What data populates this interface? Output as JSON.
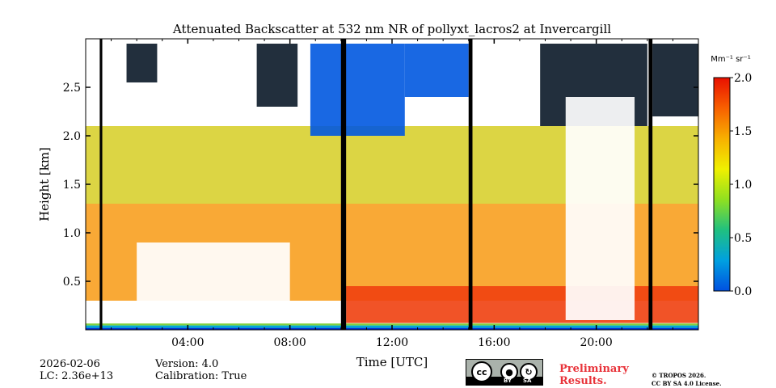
{
  "chart_data": {
    "type": "heatmap",
    "title": "Attenuated Backscatter at 532 nm NR of pollyxt_lacros2 at Invercargill",
    "xlabel": "Time [UTC]",
    "ylabel": "Height [km]",
    "xlim": [
      0,
      24
    ],
    "ylim": [
      0,
      3.0
    ],
    "x_ticks": [
      {
        "value": 4,
        "label": "04:00"
      },
      {
        "value": 8,
        "label": "08:00"
      },
      {
        "value": 12,
        "label": "12:00"
      },
      {
        "value": 16,
        "label": "16:00"
      },
      {
        "value": 20,
        "label": "20:00"
      }
    ],
    "x_minor_tick_step": 1,
    "y_ticks": [
      {
        "value": 0.5,
        "label": "0.5"
      },
      {
        "value": 1.0,
        "label": "1.0"
      },
      {
        "value": 1.5,
        "label": "1.5"
      },
      {
        "value": 2.0,
        "label": "2.0"
      },
      {
        "value": 2.5,
        "label": "2.5"
      }
    ],
    "colorbar": {
      "unit_label": "Mm⁻¹ sr⁻¹",
      "range": [
        0.0,
        2.0
      ],
      "ticks": [
        {
          "value": 0.0,
          "label": "0.0"
        },
        {
          "value": 0.5,
          "label": "0.5"
        },
        {
          "value": 1.0,
          "label": "1.0"
        },
        {
          "value": 1.5,
          "label": "1.5"
        },
        {
          "value": 2.0,
          "label": "2.0"
        }
      ],
      "colormap": [
        "#0050e0",
        "#00a0e0",
        "#20c080",
        "#90e020",
        "#f0f000",
        "#f8b000",
        "#f86000",
        "#e81000"
      ]
    },
    "no_data_color": "#000000",
    "surface_band": [
      {
        "from": 0.0,
        "to": 0.02,
        "color": "#0030d0"
      },
      {
        "from": 0.02,
        "to": 0.045,
        "color": "#00a8d8"
      },
      {
        "from": 0.045,
        "to": 0.065,
        "color": "#80d040"
      }
    ],
    "gaps": [
      {
        "start": 0.55,
        "end": 0.65
      },
      {
        "start": 10.0,
        "end": 10.2
      },
      {
        "start": 15.0,
        "end": 15.15
      },
      {
        "start": 22.05,
        "end": 22.2
      }
    ],
    "regions": [
      {
        "name": "high-clouds-dark",
        "x": [
          1.6,
          2.8
        ],
        "y": [
          2.55,
          2.95
        ],
        "color": "#0a1828"
      },
      {
        "name": "high-clouds-dark",
        "x": [
          6.7,
          8.3
        ],
        "y": [
          2.3,
          2.95
        ],
        "color": "#0a1828"
      },
      {
        "name": "blue-layer",
        "x": [
          8.8,
          12.5
        ],
        "y": [
          2.0,
          2.95
        ],
        "color": "#0058e0"
      },
      {
        "name": "blue-layer",
        "x": [
          12.5,
          15.0
        ],
        "y": [
          2.4,
          2.95
        ],
        "color": "#0058e0"
      },
      {
        "name": "dark-clouds",
        "x": [
          17.8,
          22.0
        ],
        "y": [
          2.1,
          2.95
        ],
        "color": "#0a1828"
      },
      {
        "name": "dark-clouds",
        "x": [
          22.2,
          24.0
        ],
        "y": [
          2.2,
          2.95
        ],
        "color": "#0a1828"
      },
      {
        "name": "mid-aerosol",
        "x": [
          0.0,
          24.0
        ],
        "y": [
          0.3,
          1.3
        ],
        "color": "#f8a020"
      },
      {
        "name": "aerosol-upper",
        "x": [
          0.0,
          24.0
        ],
        "y": [
          1.3,
          2.1
        ],
        "color": "#d8d030"
      },
      {
        "name": "pbl-aerosol",
        "x": [
          10.2,
          24.0
        ],
        "y": [
          0.07,
          0.45
        ],
        "color": "#f04010"
      },
      {
        "name": "clear-gap",
        "x": [
          2.0,
          8.0
        ],
        "y": [
          0.07,
          0.9
        ],
        "color": "#ffffff"
      },
      {
        "name": "clear-gap",
        "x": [
          18.8,
          21.5
        ],
        "y": [
          0.1,
          2.4
        ],
        "color": "#ffffff"
      }
    ]
  },
  "footer": {
    "date": "2026-02-06",
    "lc": "LC: 2.36e+13",
    "version": "Version: 4.0",
    "calibration": "Calibration: True",
    "preliminary_line1": "Preliminary",
    "preliminary_line2": "Results.",
    "copyright_line1": "© TROPOS 2026.",
    "copyright_line2": "CC BY SA 4.0 License.",
    "license_badge": {
      "cc": "cc",
      "by": "BY",
      "sa": "SA"
    }
  }
}
